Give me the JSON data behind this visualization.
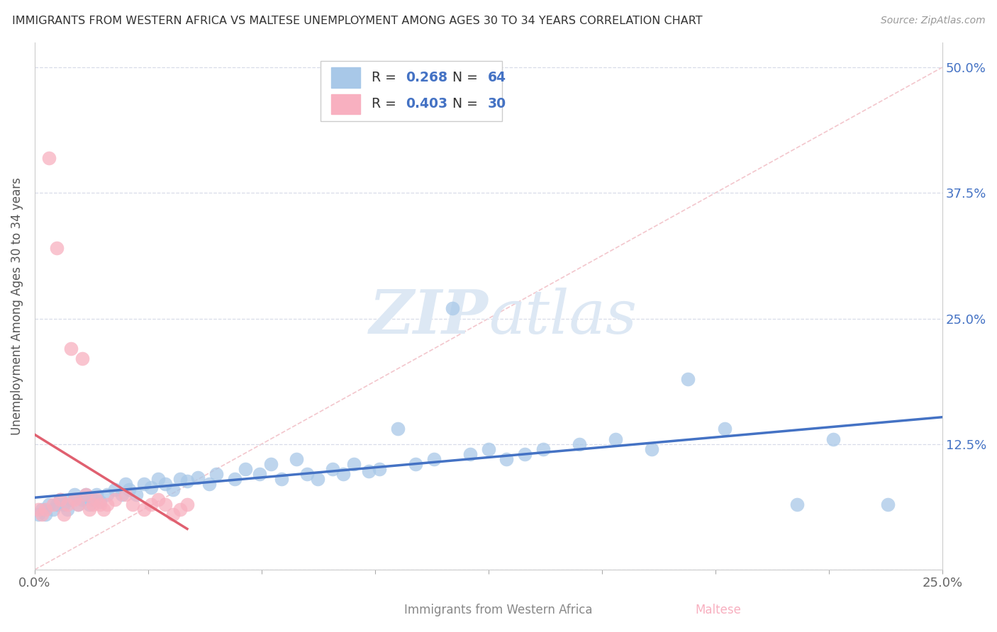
{
  "title": "IMMIGRANTS FROM WESTERN AFRICA VS MALTESE UNEMPLOYMENT AMONG AGES 30 TO 34 YEARS CORRELATION CHART",
  "source": "Source: ZipAtlas.com",
  "ylabel": "Unemployment Among Ages 30 to 34 years",
  "legend_label_blue": "Immigrants from Western Africa",
  "legend_label_pink": "Maltese",
  "xlim": [
    0,
    0.25
  ],
  "ylim": [
    0.0,
    0.525
  ],
  "yticks": [
    0.0,
    0.125,
    0.25,
    0.375,
    0.5
  ],
  "ytick_labels": [
    "",
    "12.5%",
    "25.0%",
    "37.5%",
    "50.0%"
  ],
  "xticks": [
    0.0,
    0.03125,
    0.0625,
    0.09375,
    0.125,
    0.15625,
    0.1875,
    0.21875,
    0.25
  ],
  "xtick_labels_show": [
    "0.0%",
    "",
    "",
    "",
    "",
    "",
    "",
    "",
    "25.0%"
  ],
  "blue_R": "0.268",
  "blue_N": "64",
  "pink_R": "0.403",
  "pink_N": "30",
  "blue_dot_color": "#a8c8e8",
  "pink_dot_color": "#f8b0c0",
  "blue_line_color": "#4472c4",
  "pink_line_color": "#e06070",
  "diag_line_color": "#f0b8c0",
  "text_color_blue": "#4472c4",
  "text_color_dark": "#333333",
  "grid_color": "#d8dce8",
  "background_color": "#ffffff",
  "watermark_color": "#dde8f4",
  "blue_scatter_x": [
    0.001,
    0.002,
    0.003,
    0.004,
    0.005,
    0.006,
    0.007,
    0.008,
    0.009,
    0.01,
    0.011,
    0.012,
    0.013,
    0.014,
    0.015,
    0.016,
    0.017,
    0.018,
    0.02,
    0.022,
    0.024,
    0.025,
    0.026,
    0.028,
    0.03,
    0.032,
    0.034,
    0.036,
    0.038,
    0.04,
    0.042,
    0.045,
    0.048,
    0.05,
    0.055,
    0.058,
    0.062,
    0.065,
    0.068,
    0.072,
    0.075,
    0.078,
    0.082,
    0.085,
    0.088,
    0.092,
    0.095,
    0.1,
    0.105,
    0.11,
    0.115,
    0.12,
    0.125,
    0.13,
    0.135,
    0.14,
    0.15,
    0.16,
    0.17,
    0.18,
    0.19,
    0.21,
    0.22,
    0.235
  ],
  "blue_scatter_y": [
    0.055,
    0.06,
    0.055,
    0.065,
    0.06,
    0.065,
    0.07,
    0.065,
    0.06,
    0.07,
    0.075,
    0.065,
    0.07,
    0.075,
    0.065,
    0.07,
    0.075,
    0.068,
    0.075,
    0.08,
    0.075,
    0.085,
    0.08,
    0.075,
    0.085,
    0.082,
    0.09,
    0.085,
    0.08,
    0.09,
    0.088,
    0.092,
    0.085,
    0.095,
    0.09,
    0.1,
    0.095,
    0.105,
    0.09,
    0.11,
    0.095,
    0.09,
    0.1,
    0.095,
    0.105,
    0.098,
    0.1,
    0.14,
    0.105,
    0.11,
    0.26,
    0.115,
    0.12,
    0.11,
    0.115,
    0.12,
    0.125,
    0.13,
    0.12,
    0.19,
    0.14,
    0.065,
    0.13,
    0.065
  ],
  "pink_scatter_x": [
    0.001,
    0.002,
    0.003,
    0.004,
    0.005,
    0.006,
    0.007,
    0.008,
    0.009,
    0.01,
    0.011,
    0.012,
    0.013,
    0.014,
    0.015,
    0.016,
    0.017,
    0.018,
    0.019,
    0.02,
    0.022,
    0.025,
    0.027,
    0.03,
    0.032,
    0.034,
    0.036,
    0.038,
    0.04,
    0.042
  ],
  "pink_scatter_y": [
    0.06,
    0.055,
    0.06,
    0.41,
    0.065,
    0.32,
    0.07,
    0.055,
    0.065,
    0.22,
    0.07,
    0.065,
    0.21,
    0.075,
    0.06,
    0.065,
    0.07,
    0.065,
    0.06,
    0.065,
    0.07,
    0.075,
    0.065,
    0.06,
    0.065,
    0.07,
    0.065,
    0.055,
    0.06,
    0.065
  ]
}
